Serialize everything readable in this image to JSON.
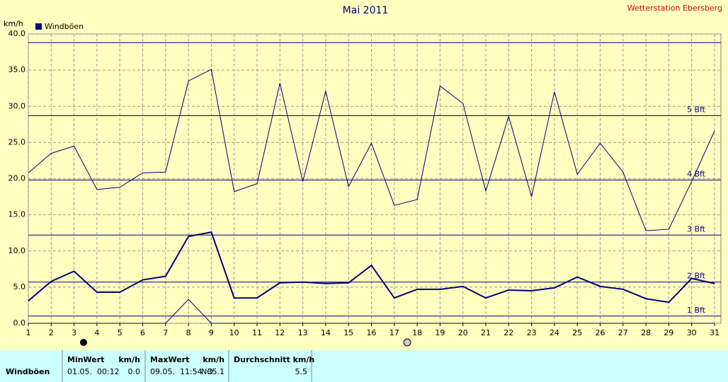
{
  "chart_data": {
    "type": "line",
    "title": "Mai 2011",
    "station": "Wetterstation Ebersberg",
    "y_label": "km/h",
    "x": [
      1,
      2,
      3,
      4,
      5,
      6,
      7,
      8,
      9,
      10,
      11,
      12,
      13,
      14,
      15,
      16,
      17,
      18,
      19,
      20,
      21,
      22,
      23,
      24,
      25,
      26,
      27,
      28,
      29,
      30,
      31
    ],
    "xlim": [
      1,
      31
    ],
    "xticks": [
      1,
      2,
      3,
      4,
      5,
      6,
      7,
      8,
      9,
      10,
      11,
      12,
      13,
      14,
      15,
      16,
      17,
      18,
      19,
      20,
      21,
      22,
      23,
      24,
      25,
      26,
      27,
      28,
      29,
      30,
      31
    ],
    "ylim": [
      0,
      40
    ],
    "yticks": [
      {
        "value": 0,
        "label": "0.0"
      },
      {
        "value": 5,
        "label": "5.0"
      },
      {
        "value": 10,
        "label": "10.0"
      },
      {
        "value": 15,
        "label": "15.0"
      },
      {
        "value": 20,
        "label": "20.0"
      },
      {
        "value": 25,
        "label": "25.0"
      },
      {
        "value": 30,
        "label": "30.0"
      },
      {
        "value": 35,
        "label": "35.0"
      },
      {
        "value": 40,
        "label": "40.0"
      }
    ],
    "grid": true,
    "series": [
      {
        "name": "Windböen",
        "color": "#000080",
        "line_width": 2,
        "values": [
          3.1,
          5.8,
          7.2,
          4.3,
          4.3,
          6.0,
          6.5,
          12.0,
          12.6,
          3.5,
          3.5,
          5.6,
          5.7,
          5.5,
          5.6,
          8.0,
          3.5,
          4.7,
          4.7,
          5.1,
          3.5,
          4.6,
          4.5,
          4.9,
          6.4,
          5.1,
          4.7,
          3.4,
          2.9,
          6.2,
          5.5
        ]
      },
      {
        "color": "#000080",
        "line_width": 1,
        "values": [
          20.8,
          23.5,
          24.5,
          18.5,
          18.8,
          20.8,
          20.9,
          33.5,
          35.1,
          18.2,
          19.3,
          33.2,
          19.6,
          32.1,
          18.9,
          24.9,
          16.3,
          17.1,
          32.8,
          30.4,
          18.3,
          28.6,
          17.5,
          32.0,
          20.6,
          24.9,
          20.9,
          12.8,
          13.0,
          19.6,
          26.6
        ]
      },
      {
        "color": "#000080",
        "line_width": 1,
        "values": [
          0,
          0,
          0,
          0,
          0,
          0,
          0,
          3.3,
          0,
          0,
          0,
          0,
          0,
          0,
          0,
          0,
          0,
          0,
          0,
          0,
          0,
          0,
          0,
          0,
          0,
          0,
          0,
          0,
          0,
          0,
          0
        ]
      }
    ],
    "reference_lines": [
      {
        "value": 1.0,
        "label": "1 Bft"
      },
      {
        "value": 5.7,
        "label": "2 Bft"
      },
      {
        "value": 12.2,
        "label": "3 Bft"
      },
      {
        "value": 19.8,
        "label": "4 Bft"
      },
      {
        "value": 28.7,
        "label": "5 Bft"
      },
      {
        "value": 38.8
      }
    ]
  },
  "summary_table": {
    "headers": [
      "MinWert",
      "km/h",
      "MaxWert",
      "km/h",
      "Durchschnitt km/h"
    ],
    "rows": [
      [
        "Windböen",
        "01.05.  00:12",
        "0.0",
        "09.05.  11:54",
        "NO",
        "35.1",
        "5.5"
      ]
    ]
  }
}
